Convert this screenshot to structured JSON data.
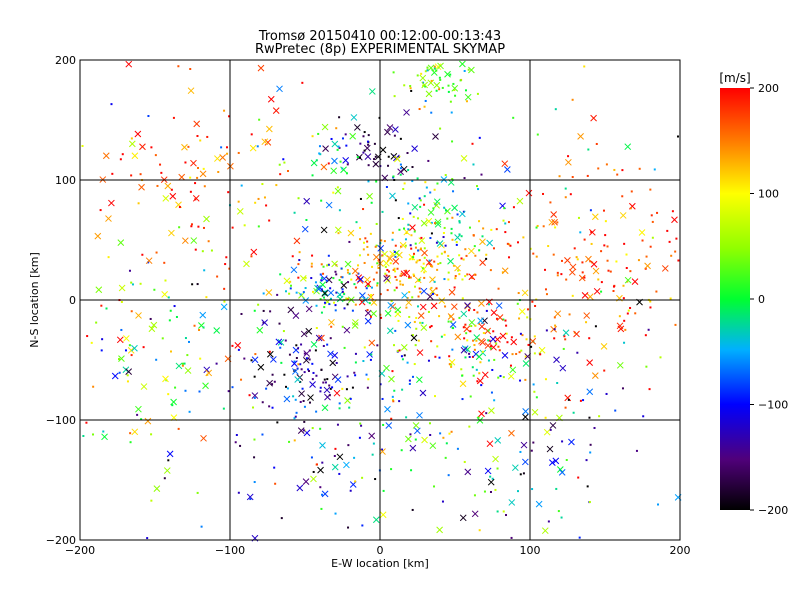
{
  "chart_data": {
    "type": "scatter",
    "title": "Tromsø 20150410 00:12:00-00:13:43",
    "subtitle": "RwPretec (8p) EXPERIMENTAL SKYMAP",
    "xlabel": "E-W location [km]",
    "ylabel": "N-S location [km]",
    "xlim": [
      -200,
      200
    ],
    "ylim": [
      -200,
      200
    ],
    "xticks": [
      -200,
      -100,
      0,
      100,
      200
    ],
    "yticks": [
      -200,
      -100,
      0,
      100,
      200
    ],
    "grid": true,
    "colorbar": {
      "label": "[m/s]",
      "min": -200,
      "max": 200,
      "ticks": [
        200,
        100,
        0,
        -100,
        -200
      ],
      "colormap": "rainbow-black-to-red"
    },
    "marker_types": [
      "dot",
      "cross"
    ],
    "clusters": [
      {
        "cx": 10,
        "cy": 25,
        "sx": 30,
        "sy": 18,
        "n": 190,
        "vmean": 140,
        "vspread": 70
      },
      {
        "cx": -35,
        "cy": 10,
        "sx": 14,
        "sy": 10,
        "n": 80,
        "vmean": -60,
        "vspread": 150
      },
      {
        "cx": 65,
        "cy": -35,
        "sx": 18,
        "sy": 14,
        "n": 80,
        "vmean": 120,
        "vspread": 160
      },
      {
        "cx": 35,
        "cy": 65,
        "sx": 20,
        "sy": 18,
        "n": 95,
        "vmean": -10,
        "vspread": 130
      },
      {
        "cx": 40,
        "cy": 180,
        "sx": 12,
        "sy": 12,
        "n": 55,
        "vmean": 30,
        "vspread": 90
      },
      {
        "cx": 0,
        "cy": 125,
        "sx": 14,
        "sy": 12,
        "n": 40,
        "vmean": -180,
        "vspread": 40
      },
      {
        "cx": -30,
        "cy": 115,
        "sx": 25,
        "sy": 15,
        "n": 40,
        "vmean": -40,
        "vspread": 100
      },
      {
        "cx": -50,
        "cy": -60,
        "sx": 25,
        "sy": 25,
        "n": 110,
        "vmean": -150,
        "vspread": 90
      },
      {
        "cx": 25,
        "cy": -40,
        "sx": 40,
        "sy": 35,
        "n": 120,
        "vmean": 40,
        "vspread": 160
      },
      {
        "cx": 140,
        "cy": 30,
        "sx": 40,
        "sy": 45,
        "n": 180,
        "vmean": 170,
        "vspread": 60
      },
      {
        "cx": -130,
        "cy": 100,
        "sx": 40,
        "sy": 40,
        "n": 110,
        "vmean": 160,
        "vspread": 90
      },
      {
        "cx": -150,
        "cy": -50,
        "sx": 40,
        "sy": 40,
        "n": 100,
        "vmean": 30,
        "vspread": 170
      },
      {
        "cx": 0,
        "cy": -130,
        "sx": 70,
        "sy": 40,
        "n": 120,
        "vmean": -80,
        "vspread": 150
      },
      {
        "cx": 110,
        "cy": -110,
        "sx": 50,
        "sy": 50,
        "n": 60,
        "vmean": -120,
        "vspread": 120
      },
      {
        "cx": 0,
        "cy": 0,
        "sx": 120,
        "sy": 110,
        "n": 260,
        "vmean": 20,
        "vspread": 210
      }
    ]
  }
}
